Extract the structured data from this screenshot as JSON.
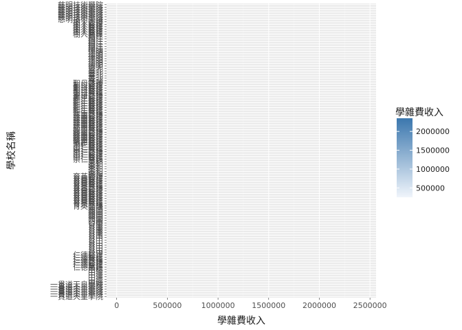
{
  "chart_data": {
    "type": "bar",
    "orientation": "horizontal",
    "xlabel": "學雜費收入",
    "ylabel": "學校名稱",
    "xlim": [
      -100000,
      2560000
    ],
    "x_ticks": [
      0,
      500000,
      1000000,
      1500000,
      2000000,
      2500000
    ],
    "x_tick_labels": [
      "0",
      "500000",
      "1000000",
      "1500000",
      "2000000",
      "2500000"
    ],
    "category_count": 120,
    "category_labels": [
      "慈明技術學院",
      "樹人醫護",
      "稻江",
      "德明",
      "臺北",
      "聖母醫護",
      "新生醫護",
      "慈惠醫護",
      "敏惠醫護",
      "崇仁醫護",
      "美和",
      "育英醫護",
      "育英醫護",
      "西園",
      "台南",
      "台中",
      "仁德醫護",
      "中信",
      "一貫道天皇學院"
    ],
    "grid": true,
    "legend": {
      "title": "學雜費收入",
      "position": "right",
      "ticks": [
        500000,
        1000000,
        1500000,
        2000000
      ],
      "tick_labels": [
        "500000",
        "1000000",
        "1500000",
        "2000000"
      ],
      "range": [
        250000,
        2350000
      ],
      "low_color": "#f0f5fb",
      "high_color": "#3b77ae"
    }
  }
}
